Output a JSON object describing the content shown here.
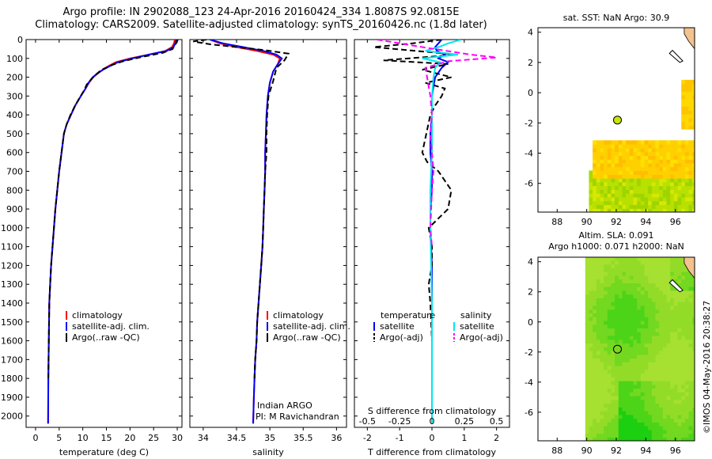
{
  "header": {
    "title_line1": "Argo profile: IN 2902088_123 24-Apr-2016 20160424_334 1.8087S 92.0815E",
    "title_line2": "Climatology: CARS2009. Satellite-adjusted climatology: synTS_20160426.nc (1.8d later)"
  },
  "depth_axis": {
    "ticks": [
      0,
      100,
      200,
      300,
      400,
      500,
      600,
      700,
      800,
      900,
      1000,
      1100,
      1200,
      1300,
      1400,
      1500,
      1600,
      1700,
      1800,
      1900,
      2000
    ],
    "ylim": [
      0,
      2060
    ]
  },
  "colors": {
    "climatology": "#ff0000",
    "satellite": "#0000ff",
    "argo": "#000000",
    "sal_satellite": "#00e5ee",
    "sal_argo": "#ff00ff"
  },
  "chart_data": [
    {
      "id": "temperature",
      "type": "line",
      "xlabel": "temperature (deg C)",
      "xlim": [
        -2,
        31
      ],
      "xticks": [
        0,
        5,
        10,
        15,
        20,
        25,
        30
      ],
      "legend": {
        "placement": "lower-center",
        "entries": [
          "climatology",
          "satellite-adj. clim.",
          "Argo(..raw -QC)"
        ]
      },
      "series": [
        {
          "name": "climatology",
          "color": "#ff0000",
          "style": "solid",
          "x": [
            29.5,
            29.3,
            28.9,
            27.5,
            24,
            20,
            17,
            15.5,
            14.2,
            13.2,
            12.2,
            11.3,
            10.6,
            9.6,
            8.4,
            7.5,
            6.6,
            6.0,
            5.5,
            5.0,
            4.6,
            4.2,
            3.9,
            3.6,
            3.3,
            3.1,
            2.9,
            2.8,
            2.7,
            2.65
          ],
          "y": [
            0,
            20,
            40,
            60,
            80,
            100,
            120,
            140,
            160,
            180,
            200,
            230,
            260,
            300,
            350,
            400,
            450,
            500,
            600,
            700,
            800,
            900,
            1000,
            1100,
            1200,
            1300,
            1400,
            1600,
            1800,
            2040
          ]
        },
        {
          "name": "satellite-adj. clim.",
          "color": "#0000ff",
          "style": "solid",
          "x": [
            29.8,
            29.6,
            29.2,
            27.8,
            24,
            20.5,
            17.5,
            15.8,
            14.3,
            13.1,
            12.1,
            11.2,
            10.6,
            9.6,
            8.4,
            7.5,
            6.6,
            6.0,
            5.5,
            5.0,
            4.6,
            4.2,
            3.9,
            3.6,
            3.3,
            3.1,
            2.9,
            2.8,
            2.7,
            2.65
          ],
          "y": [
            0,
            20,
            40,
            60,
            80,
            100,
            120,
            140,
            160,
            180,
            200,
            230,
            260,
            300,
            350,
            400,
            450,
            500,
            600,
            700,
            800,
            900,
            1000,
            1100,
            1200,
            1300,
            1400,
            1600,
            1800,
            2040
          ]
        },
        {
          "name": "Argo(..raw -QC)",
          "color": "#000000",
          "style": "dashed",
          "x": [
            30.1,
            29.9,
            29.5,
            29.0,
            27.0,
            22,
            18.5,
            16.2,
            14.0,
            12.8,
            11.8,
            10.8,
            10.3,
            9.3,
            8.3,
            7.4,
            6.6,
            6.0,
            5.5,
            5.0,
            4.6,
            4.2,
            3.9,
            3.6,
            3.3,
            3.1,
            2.9,
            2.8,
            2.7
          ],
          "y": [
            0,
            15,
            30,
            50,
            70,
            95,
            115,
            135,
            160,
            185,
            210,
            240,
            270,
            310,
            355,
            400,
            450,
            500,
            600,
            700,
            800,
            900,
            1000,
            1100,
            1200,
            1300,
            1400,
            1600,
            1800
          ]
        }
      ]
    },
    {
      "id": "salinity",
      "type": "line",
      "xlabel": "salinity",
      "xlim": [
        33.8,
        36.15
      ],
      "xticks": [
        34,
        34.5,
        35,
        35.5,
        36
      ],
      "xticklabels": [
        "34",
        "34.5",
        "35",
        "35.5",
        "36"
      ],
      "legend": {
        "placement": "lower-center",
        "entries": [
          "climatology",
          "satellite-adj. clim.",
          "Argo(..raw -QC)"
        ]
      },
      "annotation": [
        "Indian ARGO",
        "PI: M Ravichandran"
      ],
      "series": [
        {
          "name": "climatology",
          "color": "#ff0000",
          "style": "solid",
          "x": [
            34.1,
            34.25,
            34.5,
            34.8,
            35.05,
            35.15,
            35.12,
            35.05,
            35.0,
            34.97,
            34.95,
            34.94,
            34.93,
            34.93,
            34.92,
            34.91,
            34.9,
            34.89,
            34.87,
            34.85,
            34.83,
            34.81,
            34.8,
            34.78,
            34.77,
            34.76,
            34.75
          ],
          "y": [
            0,
            20,
            40,
            60,
            80,
            100,
            130,
            170,
            230,
            300,
            400,
            500,
            600,
            700,
            800,
            900,
            1000,
            1100,
            1200,
            1300,
            1400,
            1500,
            1600,
            1700,
            1800,
            1900,
            2040
          ]
        },
        {
          "name": "satellite-adj. clim.",
          "color": "#0000ff",
          "style": "solid",
          "x": [
            34.1,
            34.3,
            34.6,
            34.9,
            35.1,
            35.18,
            35.12,
            35.05,
            35.0,
            34.97,
            34.95,
            34.94,
            34.93,
            34.93,
            34.92,
            34.91,
            34.9,
            34.89,
            34.87,
            34.85,
            34.83,
            34.81,
            34.8,
            34.78,
            34.77,
            34.76,
            34.75
          ],
          "y": [
            0,
            20,
            40,
            60,
            80,
            100,
            130,
            170,
            230,
            300,
            400,
            500,
            600,
            700,
            800,
            900,
            1000,
            1100,
            1200,
            1300,
            1400,
            1500,
            1600,
            1700,
            1800,
            1900,
            2040
          ]
        },
        {
          "name": "Argo(..raw -QC)",
          "color": "#000000",
          "style": "dashed",
          "x": [
            34.05,
            33.85,
            34.1,
            34.5,
            34.9,
            35.28,
            35.22,
            35.1,
            35.05,
            34.98,
            34.96,
            34.95,
            34.95,
            34.93,
            34.92,
            34.91,
            34.9,
            34.89,
            34.87,
            34.85,
            34.83,
            34.81,
            34.8,
            34.78,
            34.77
          ],
          "y": [
            0,
            10,
            25,
            40,
            55,
            75,
            110,
            150,
            220,
            300,
            400,
            500,
            600,
            700,
            800,
            900,
            1000,
            1100,
            1200,
            1300,
            1400,
            1500,
            1600,
            1700,
            1800
          ]
        }
      ]
    },
    {
      "id": "difference",
      "type": "line",
      "xlabel": "T difference from climatology",
      "xlabel_top": "S difference from climatology",
      "xlim": [
        -2.4,
        2.4
      ],
      "xticks": [
        -2,
        -1,
        0,
        1,
        2
      ],
      "xticks_top": [
        -0.5,
        -0.25,
        0,
        0.25,
        0.5
      ],
      "xticklabels_top": [
        "-0.5",
        "-0.25",
        "0",
        "0.25",
        "0.5"
      ],
      "legend": {
        "placement": "lower-center",
        "headers": [
          "temperature",
          "salinity"
        ],
        "entries": [
          "satellite",
          "Argo(-adj)",
          "satellite",
          "Argo(-adj)"
        ]
      },
      "series": [
        {
          "name": "temperature satellite",
          "color": "#0000ff",
          "style": "solid",
          "x": [
            0.3,
            0.2,
            0.1,
            0.15,
            0.4,
            0.2,
            0.5,
            0.3,
            0.1,
            0.05,
            0.0,
            0.0,
            -0.05,
            -0.05,
            0.0,
            0.0,
            -0.05,
            -0.05,
            0.0,
            0.0,
            0.0,
            0.0
          ],
          "y": [
            0,
            20,
            40,
            60,
            80,
            100,
            120,
            150,
            200,
            250,
            300,
            400,
            500,
            600,
            700,
            800,
            900,
            1000,
            1200,
            1400,
            1600,
            2040
          ]
        },
        {
          "name": "temperature Argo(-adj)",
          "color": "#000000",
          "style": "dashed",
          "x": [
            0.3,
            -0.6,
            -1.8,
            -0.5,
            0.8,
            -1.5,
            0.5,
            -0.3,
            0.6,
            -0.2,
            0.4,
            0.3,
            0.1,
            -0.05,
            -0.3,
            -0.15,
            0.2,
            0.6,
            0.5,
            -0.1,
            0.0,
            0.0,
            -0.1,
            -0.05,
            0.0,
            0.0,
            0.0
          ],
          "y": [
            0,
            20,
            40,
            60,
            80,
            110,
            130,
            160,
            200,
            230,
            260,
            300,
            350,
            400,
            600,
            650,
            700,
            800,
            900,
            1000,
            1100,
            1200,
            1300,
            1400,
            1600,
            1800,
            1820
          ]
        },
        {
          "name": "salinity satellite",
          "color": "#00e5ee",
          "style": "solid",
          "x": [
            0.9,
            0.5,
            0.2,
            -0.2,
            0.8,
            -0.3,
            0.25,
            0.1,
            0.05,
            0.0,
            0.0,
            0.0,
            -0.05,
            -0.05,
            0.0,
            0.0,
            0.0
          ],
          "y": [
            0,
            20,
            40,
            60,
            80,
            100,
            120,
            150,
            200,
            300,
            400,
            600,
            800,
            1000,
            1400,
            1800,
            2040
          ]
        },
        {
          "name": "salinity Argo(-adj)",
          "color": "#ff00ff",
          "style": "dashed",
          "x": [
            -1.7,
            -0.3,
            1.2,
            2.0,
            0.5,
            -0.2,
            -0.15,
            -0.1,
            -0.05,
            0.0,
            -0.05,
            0.0,
            0.05,
            0.0,
            -0.05,
            0.0
          ],
          "y": [
            0,
            40,
            80,
            95,
            115,
            150,
            200,
            250,
            300,
            400,
            500,
            600,
            700,
            800,
            1000,
            1100
          ]
        }
      ]
    },
    {
      "id": "sst_map",
      "type": "heatmap",
      "title": "sat. SST: NaN Argo: 30.9",
      "xlim": [
        86.7,
        97.3
      ],
      "ylim": [
        -7.9,
        4.3
      ],
      "xticks": [
        88,
        90,
        92,
        94,
        96
      ],
      "yticks": [
        4,
        2,
        0,
        -2,
        -4,
        -6
      ],
      "argo_position": {
        "lon": 92.08,
        "lat": -1.81
      }
    },
    {
      "id": "sla_map",
      "type": "heatmap",
      "title_line1": "Altim. SLA: 0.091",
      "title_line2": "Argo h1000: 0.071 h2000: NaN",
      "xlim": [
        86.7,
        97.3
      ],
      "ylim": [
        -7.9,
        4.3
      ],
      "xticks": [
        88,
        90,
        92,
        94,
        96
      ],
      "yticks": [
        4,
        2,
        0,
        -2,
        -4,
        -6
      ],
      "argo_position": {
        "lon": 92.08,
        "lat": -1.81
      }
    }
  ],
  "footer": {
    "credit": "©IMOS 04-May-2016 20:38:27"
  }
}
